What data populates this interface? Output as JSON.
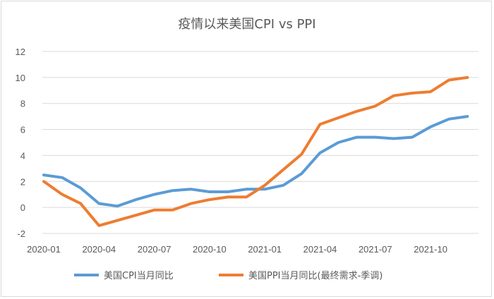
{
  "chart_data": {
    "type": "line",
    "title": "疫情以来美国CPI vs PPI",
    "xlabel": "",
    "ylabel": "",
    "x_tick_labels": [
      "2020-01",
      "2020-04",
      "2020-07",
      "2020-10",
      "2021-01",
      "2021-04",
      "2021-07",
      "2021-10"
    ],
    "y_ticks": [
      -2,
      0,
      2,
      4,
      6,
      8,
      10,
      12
    ],
    "ylim": [
      -2,
      12
    ],
    "grid": "horizontal",
    "legend_position": "bottom",
    "x": [
      "2020-01",
      "2020-02",
      "2020-03",
      "2020-04",
      "2020-05",
      "2020-06",
      "2020-07",
      "2020-08",
      "2020-09",
      "2020-10",
      "2020-11",
      "2020-12",
      "2021-01",
      "2021-02",
      "2021-03",
      "2021-04",
      "2021-05",
      "2021-06",
      "2021-07",
      "2021-08",
      "2021-09",
      "2021-10",
      "2021-11",
      "2021-12"
    ],
    "series": [
      {
        "name": "美国CPI当月同比",
        "color": "#5b9bd5",
        "values": [
          2.5,
          2.3,
          1.5,
          0.3,
          0.1,
          0.6,
          1.0,
          1.3,
          1.4,
          1.2,
          1.2,
          1.4,
          1.4,
          1.7,
          2.6,
          4.2,
          5.0,
          5.4,
          5.4,
          5.3,
          5.4,
          6.2,
          6.8,
          7.0
        ]
      },
      {
        "name": "美国PPI当月同比(最终需求-季调)",
        "color": "#ed7d31",
        "values": [
          2.0,
          1.0,
          0.3,
          -1.4,
          -1.0,
          -0.6,
          -0.2,
          -0.2,
          0.3,
          0.6,
          0.8,
          0.8,
          1.7,
          2.9,
          4.1,
          6.4,
          6.9,
          7.4,
          7.8,
          8.6,
          8.8,
          8.9,
          9.8,
          10.0
        ]
      }
    ]
  }
}
